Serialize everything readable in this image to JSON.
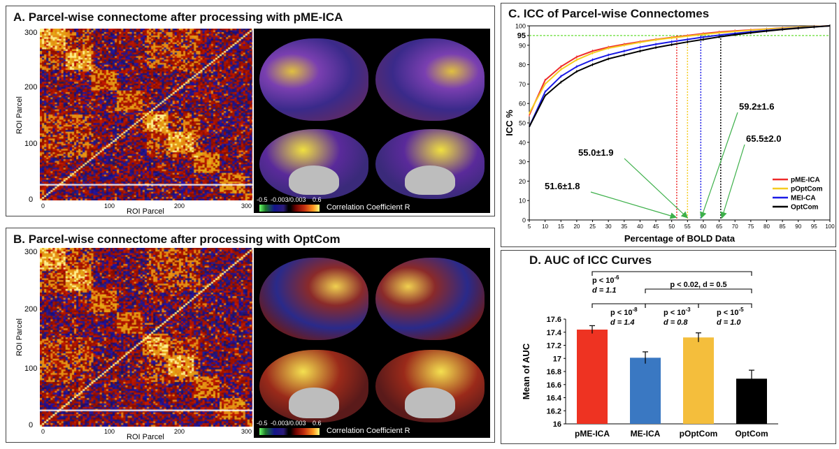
{
  "panel_a": {
    "title": "A.  Parcel-wise connectome after processing with pME-ICA",
    "axis_y_label": "ROI Parcel",
    "axis_x_label": "ROI  Parcel",
    "ticks_y": [
      "300",
      "200",
      "100",
      "0"
    ],
    "ticks_x": [
      "0",
      "100",
      "200",
      "300"
    ]
  },
  "panel_b": {
    "title": "B.  Parcel-wise connectome after processing with OptCom",
    "axis_y_label": "ROI Parcel",
    "axis_x_label": "ROI  Parcel",
    "ticks_y": [
      "300",
      "200",
      "100",
      "0"
    ],
    "ticks_x": [
      "0",
      "100",
      "200",
      "300"
    ]
  },
  "colorbar": {
    "min_label": "-0.5",
    "mid_label": "-0.003/0.003",
    "max_label": "0.6",
    "label": "Correlation Coefficient R"
  },
  "chart_data": [
    {
      "id": "panel_c",
      "type": "line",
      "title": "C.  ICC of Parcel-wise Connectomes",
      "xlabel": "Percentage of BOLD Data",
      "ylabel": "ICC %",
      "xlim": [
        5,
        100
      ],
      "ylim": [
        0,
        100
      ],
      "x": [
        5,
        10,
        15,
        20,
        25,
        30,
        35,
        40,
        45,
        50,
        55,
        60,
        65,
        70,
        75,
        80,
        85,
        90,
        95,
        100
      ],
      "xticks": [
        5,
        10,
        15,
        20,
        25,
        30,
        35,
        40,
        45,
        50,
        55,
        60,
        65,
        70,
        75,
        80,
        85,
        90,
        95,
        100
      ],
      "yticks": [
        0,
        10,
        20,
        30,
        40,
        50,
        60,
        70,
        80,
        90,
        95,
        100
      ],
      "threshold": {
        "value": 95,
        "label": "95",
        "color": "#66dd33"
      },
      "series": [
        {
          "name": "pME-ICA",
          "color": "#ee2b2b",
          "values": [
            54,
            72,
            79,
            84,
            87,
            89,
            90.5,
            91.8,
            93,
            94,
            95,
            96,
            96.8,
            97.4,
            97.9,
            98.4,
            98.9,
            99.3,
            99.7,
            100
          ]
        },
        {
          "name": "pOptCom",
          "color": "#f5cc20",
          "values": [
            55,
            70,
            77.5,
            82.5,
            86,
            88.5,
            90,
            91.5,
            92.8,
            93.8,
            94.7,
            95.6,
            96.4,
            97.1,
            97.7,
            98.3,
            98.8,
            99.3,
            99.7,
            100
          ]
        },
        {
          "name": "MEI-CA",
          "color": "#1a1ae6",
          "values": [
            48,
            66,
            74,
            79,
            82.5,
            85,
            87,
            89,
            90.5,
            91.8,
            93,
            94.2,
            95.2,
            96.1,
            96.9,
            97.6,
            98.3,
            98.9,
            99.5,
            100
          ]
        },
        {
          "name": "OptCom",
          "color": "#000000",
          "values": [
            48,
            64,
            71,
            76.5,
            80,
            83,
            85,
            87,
            88.8,
            90.3,
            91.7,
            93,
            94.3,
            95.4,
            96.4,
            97.3,
            98.1,
            98.8,
            99.4,
            100
          ]
        }
      ],
      "markers": [
        {
          "x": 51.6,
          "color": "#ee2b2b",
          "label": "51.6±1.8"
        },
        {
          "x": 55.0,
          "color": "#f5cc20",
          "label": "55.0±1.9"
        },
        {
          "x": 59.2,
          "color": "#1a1ae6",
          "label": "59.2±1.6"
        },
        {
          "x": 65.5,
          "color": "#000000",
          "label": "65.5±2.0"
        }
      ],
      "legend_position": "bottom-right"
    },
    {
      "id": "panel_d",
      "type": "bar",
      "title": "D.  AUC of ICC Curves",
      "xlabel": "",
      "ylabel": "Mean of AUC",
      "ylim": [
        16,
        17.6
      ],
      "yticks": [
        "16",
        "16.2",
        "16.4",
        "16.6",
        "16.8",
        "17",
        "17.2",
        "17.4",
        "17.6"
      ],
      "categories": [
        "pME-ICA",
        "ME-ICA",
        "pOptCom",
        "OptCom"
      ],
      "values": [
        17.44,
        17.01,
        17.32,
        16.69
      ],
      "errors": [
        0.06,
        0.09,
        0.07,
        0.13
      ],
      "colors": [
        "#ee3322",
        "#3a78c2",
        "#f4be3c",
        "#000000"
      ],
      "comparisons": [
        {
          "from": 0,
          "to": 3,
          "level": 1,
          "label_p": "p < 10",
          "label_exp": "-6",
          "label_d": "d = 1.1"
        },
        {
          "from": 1,
          "to": 3,
          "level": 2,
          "label": "p < 0.02, d = 0.5"
        },
        {
          "from": 0,
          "to": 1,
          "level": 3,
          "label_p": "p < 10",
          "label_exp": "-8",
          "label_d": "d = 1.4"
        },
        {
          "from": 1,
          "to": 2,
          "level": 3,
          "label_p": "p < 10",
          "label_exp": "-3",
          "label_d": "d = 0.8"
        },
        {
          "from": 2,
          "to": 3,
          "level": 3,
          "label_p": "p < 10",
          "label_exp": "-5",
          "label_d": "d = 1.0"
        }
      ]
    }
  ]
}
